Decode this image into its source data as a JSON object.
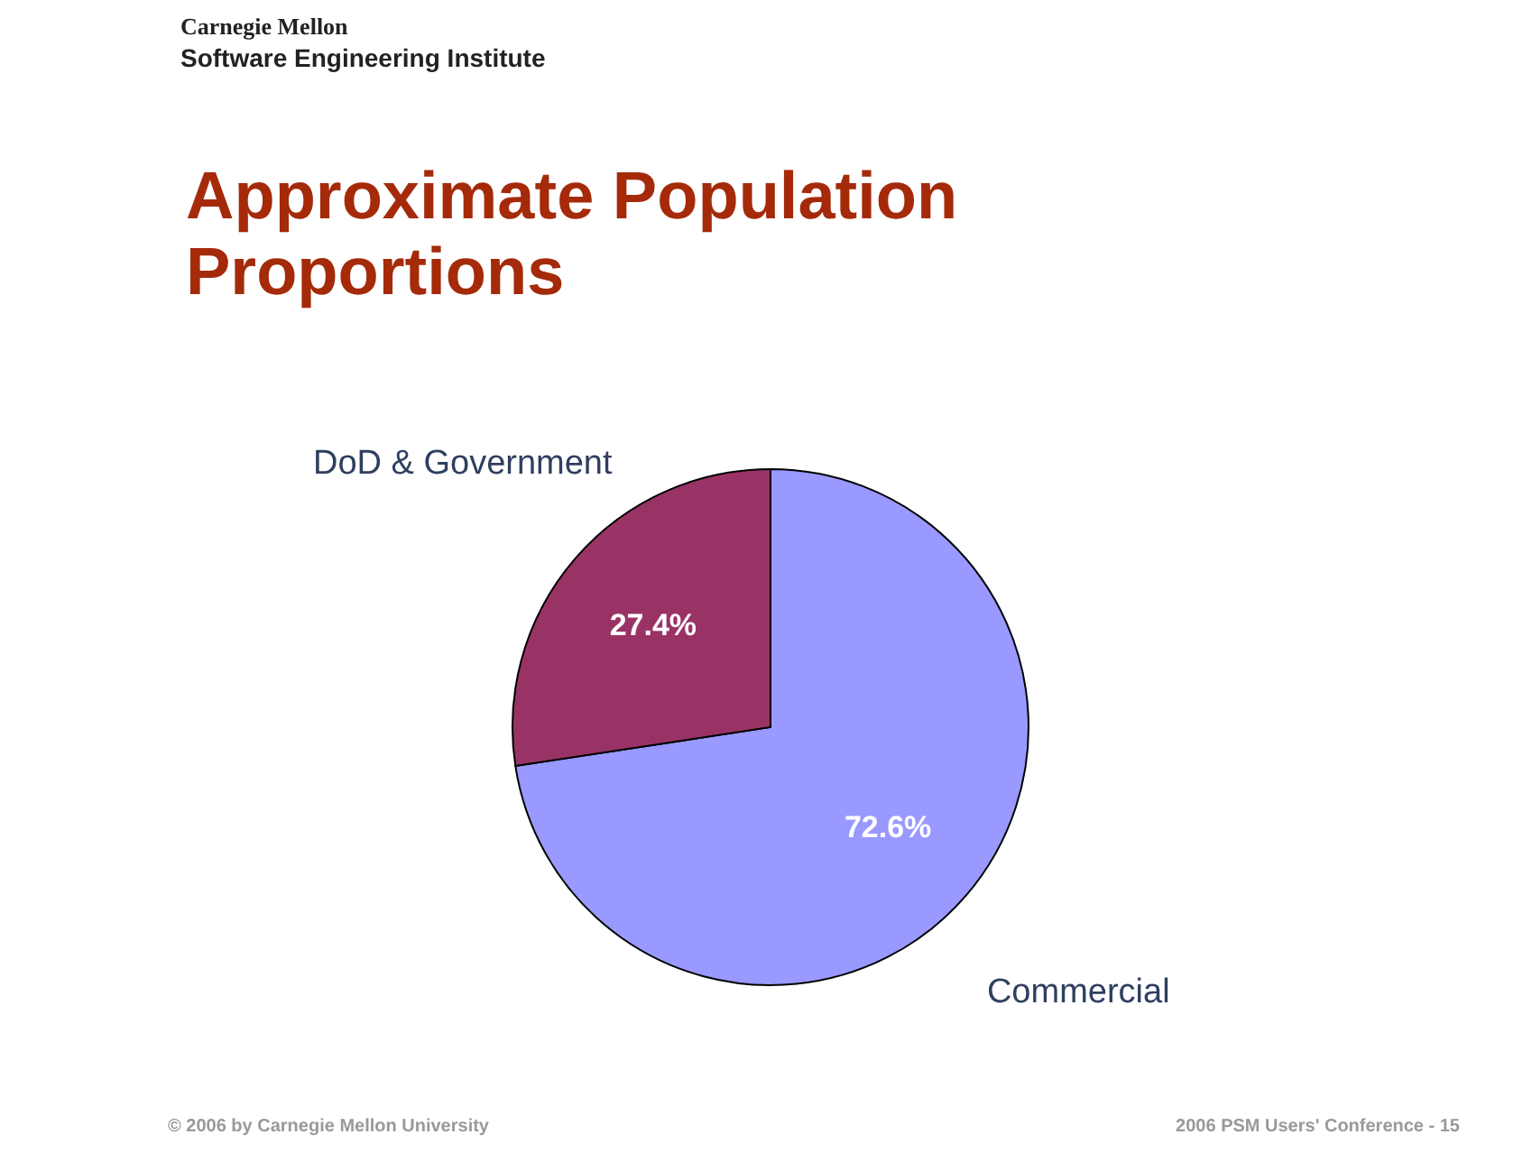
{
  "chart_data": {
    "type": "pie",
    "title": "Approximate Population Proportions",
    "categories": [
      "Commercial",
      "DoD & Government"
    ],
    "values": [
      72.6,
      27.4
    ],
    "colors": [
      "#9999ff",
      "#993366"
    ],
    "value_labels": [
      "72.6%",
      "27.4%"
    ],
    "annotations": [
      "Carnegie Mellon",
      "Software Engineering Institute",
      "© 2006 by Carnegie Mellon University",
      "2006 PSM Users' Conference - 15"
    ]
  }
}
